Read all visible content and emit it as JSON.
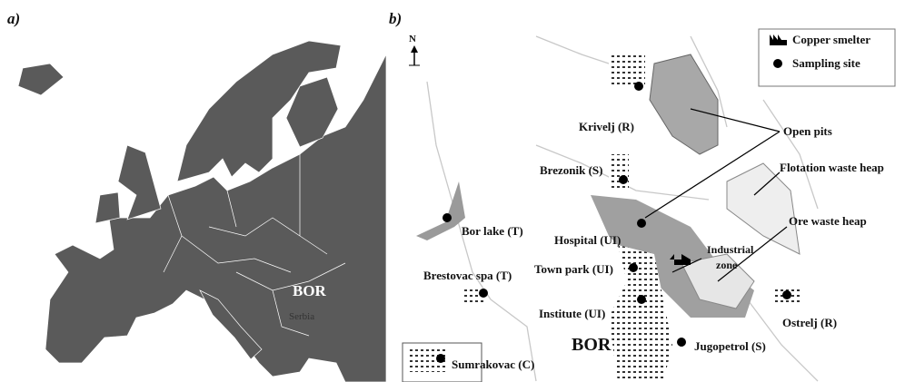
{
  "panel_a": {
    "label": "a)",
    "site": "BOR",
    "country": "Serbia"
  },
  "panel_b": {
    "label": "b)",
    "north": "N",
    "legend": {
      "smelter": "Copper smelter",
      "site": "Sampling site"
    },
    "features": {
      "open_pits": "Open pits",
      "flotation": "Flotation waste heap",
      "ore": "Ore waste heap",
      "industrial_zone": [
        "Industrial",
        "zone"
      ],
      "town": "BOR"
    },
    "sites": [
      "Krivelj (R)",
      "Brezonik (S)",
      "Bor lake (T)",
      "Hospital (UI)",
      "Town park (UI)",
      "Brestovac spa (T)",
      "Institute (UI)",
      "Ostrelj (R)",
      "Jugopetrol (S)",
      "Sumrakovac (C)"
    ]
  }
}
